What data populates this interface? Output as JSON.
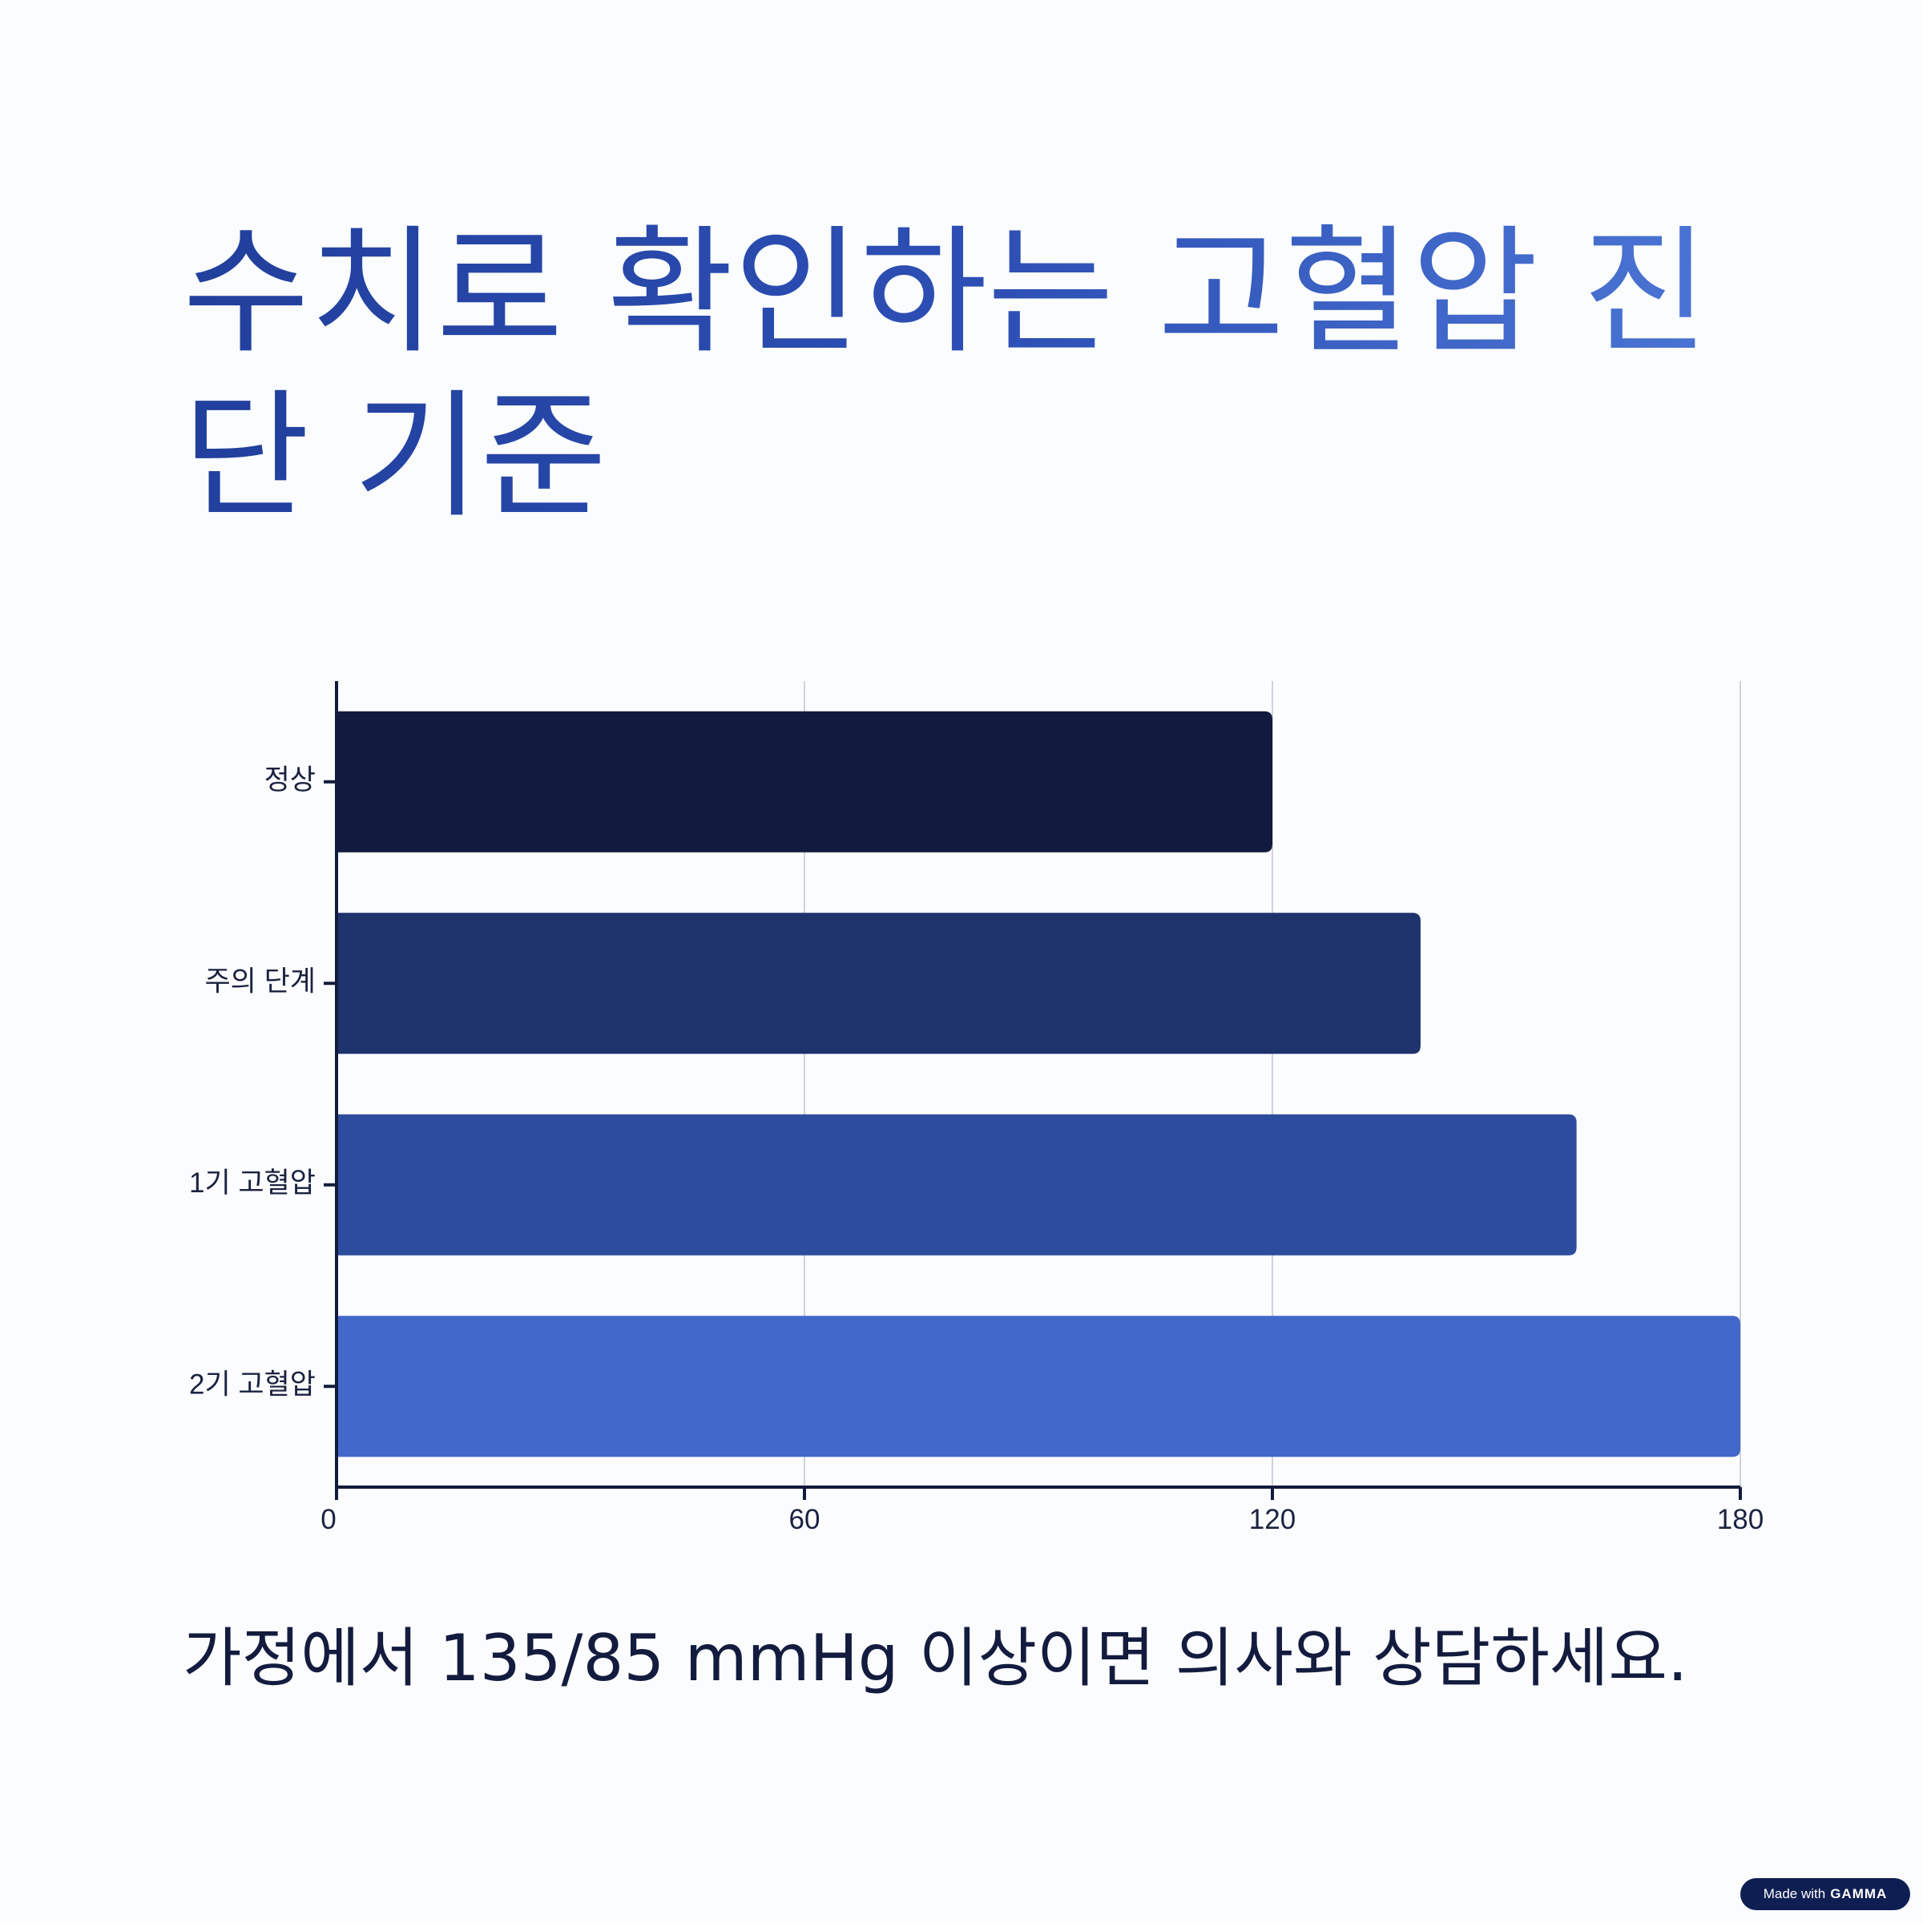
{
  "slide": {
    "title": "수치로 확인하는 고혈압 진단 기준",
    "footnote": "가정에서 135/85 mmHg 이상이면 의사와 상담하세요.",
    "badge": {
      "prefix": "Made with",
      "brand": "GAMMA"
    }
  },
  "chart_data": {
    "type": "bar",
    "orientation": "horizontal",
    "title": "",
    "xlabel": "",
    "ylabel": "",
    "categories": [
      "정상",
      "주의 단계",
      "1기 고혈압",
      "2기 고혈압"
    ],
    "values": [
      120,
      139,
      159,
      180
    ],
    "xlim": [
      0,
      180
    ],
    "xticks": [
      0,
      60,
      120,
      180
    ],
    "grid": "vertical",
    "legend": "none",
    "colors": [
      "#111b3d",
      "#1e326c",
      "#2d4c9d",
      "#4268c9"
    ]
  }
}
